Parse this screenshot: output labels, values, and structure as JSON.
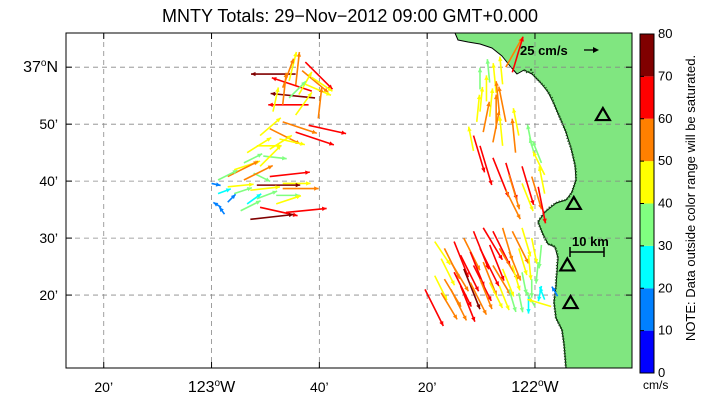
{
  "title": "MNTY Totals: 29−Nov−2012 09:00 GMT+0.000",
  "lat_ticks": [
    {
      "value": 37.0,
      "label": "37",
      "sup": "o",
      "suffix": "N"
    },
    {
      "value": 36.8333,
      "label": "50’"
    },
    {
      "value": 36.6667,
      "label": "40’"
    },
    {
      "value": 36.5,
      "label": "30’"
    },
    {
      "value": 36.3333,
      "label": "20’"
    }
  ],
  "lon_ticks": [
    {
      "value": -123.3333,
      "label": "20’"
    },
    {
      "value": -123.0,
      "label": "123",
      "sup": "o",
      "suffix": "W"
    },
    {
      "value": -122.6667,
      "label": "40’"
    },
    {
      "value": -122.3333,
      "label": "20’"
    },
    {
      "value": -122.0,
      "label": "122",
      "sup": "o",
      "suffix": "W"
    }
  ],
  "map_extent": {
    "lon_min": -123.45,
    "lon_max": -121.7,
    "lat_min": 36.12,
    "lat_max": 37.1
  },
  "grid": true,
  "colorbar": {
    "min": 0,
    "max": 80,
    "tick_labels": [
      "0",
      "10",
      "20",
      "30",
      "40",
      "50",
      "60",
      "70",
      "80"
    ],
    "colors": [
      "#0000ff",
      "#0080ff",
      "#00ffff",
      "#80ff80",
      "#ffff00",
      "#ff8000",
      "#ff0000",
      "#800000"
    ],
    "unit": "cm/s",
    "note": "NOTE: Data outside color range will be saturated."
  },
  "reference_vector": {
    "label": "25 cm/s",
    "speed": 25
  },
  "scale_bar": {
    "label": "10 km"
  },
  "land_color": "#80e680",
  "sites": [
    {
      "lon": -121.79,
      "lat": 36.86
    },
    {
      "lon": -121.88,
      "lat": 36.6
    },
    {
      "lon": -121.9,
      "lat": 36.42
    },
    {
      "lon": -121.89,
      "lat": 36.31
    }
  ],
  "vectors": [
    {
      "lon": -122.71,
      "lat": 37.015,
      "u": 0.5,
      "v": -0.5,
      "s": 62
    },
    {
      "lon": -122.72,
      "lat": 36.99,
      "u": 0.6,
      "v": -0.5,
      "s": 55
    },
    {
      "lon": -122.74,
      "lat": 36.98,
      "u": -1,
      "v": 0,
      "s": 72
    },
    {
      "lon": -122.69,
      "lat": 36.97,
      "u": 0.6,
      "v": -0.4,
      "s": 40
    },
    {
      "lon": -122.76,
      "lat": 36.96,
      "u": 0.2,
      "v": 0.8,
      "s": 48
    },
    {
      "lon": -122.71,
      "lat": 36.95,
      "u": 0.7,
      "v": -0.3,
      "s": 45
    },
    {
      "lon": -122.74,
      "lat": 36.945,
      "u": 0.1,
      "v": 0.9,
      "s": 55
    },
    {
      "lon": -122.78,
      "lat": 36.94,
      "u": 0.3,
      "v": 0.8,
      "s": 50
    },
    {
      "lon": -122.69,
      "lat": 36.93,
      "u": -0.9,
      "v": 0.3,
      "s": 68
    },
    {
      "lon": -122.73,
      "lat": 36.92,
      "u": 0.4,
      "v": 0.7,
      "s": 42
    },
    {
      "lon": -122.68,
      "lat": 36.91,
      "u": -1,
      "v": 0.1,
      "s": 72
    },
    {
      "lon": -122.76,
      "lat": 36.91,
      "u": 0.6,
      "v": 0.6,
      "s": 38
    },
    {
      "lon": -122.7,
      "lat": 36.89,
      "u": -1,
      "v": 0,
      "s": 65
    },
    {
      "lon": -122.78,
      "lat": 36.89,
      "u": 0.1,
      "v": 0.9,
      "s": 52
    },
    {
      "lon": -122.81,
      "lat": 36.87,
      "u": 0.2,
      "v": 0.9,
      "s": 40
    },
    {
      "lon": -122.74,
      "lat": 36.86,
      "u": 0.5,
      "v": 0.7,
      "s": 45
    },
    {
      "lon": -122.67,
      "lat": 36.85,
      "u": 0.1,
      "v": 0.9,
      "s": 50
    },
    {
      "lon": -122.78,
      "lat": 36.84,
      "u": 0.9,
      "v": -0.3,
      "s": 58
    },
    {
      "lon": -122.7,
      "lat": 36.83,
      "u": 0.9,
      "v": -0.2,
      "s": 62
    },
    {
      "lon": -122.82,
      "lat": 36.82,
      "u": 0.8,
      "v": -0.4,
      "s": 55
    },
    {
      "lon": -122.74,
      "lat": 36.81,
      "u": 0.9,
      "v": -0.3,
      "s": 65
    },
    {
      "lon": -122.85,
      "lat": 36.8,
      "u": 0.7,
      "v": 0.6,
      "s": 44
    },
    {
      "lon": -122.79,
      "lat": 36.79,
      "u": 0.9,
      "v": -0.2,
      "s": 42
    },
    {
      "lon": -122.86,
      "lat": 36.77,
      "u": 0.9,
      "v": 0,
      "s": 40
    },
    {
      "lon": -122.82,
      "lat": 36.76,
      "u": 0.8,
      "v": 0.5,
      "s": 42
    },
    {
      "lon": -122.89,
      "lat": 36.75,
      "u": 0.8,
      "v": 0.5,
      "s": 46
    },
    {
      "lon": -122.84,
      "lat": 36.74,
      "u": 0.9,
      "v": -0.1,
      "s": 38
    },
    {
      "lon": -122.9,
      "lat": 36.72,
      "u": 0.8,
      "v": 0.4,
      "s": 33
    },
    {
      "lon": -122.85,
      "lat": 36.71,
      "u": 0.6,
      "v": 0.6,
      "s": 48
    },
    {
      "lon": -122.93,
      "lat": 36.7,
      "u": 0.9,
      "v": 0.3,
      "s": 44
    },
    {
      "lon": -122.87,
      "lat": 36.69,
      "u": 0.8,
      "v": -0.4,
      "s": 30
    },
    {
      "lon": -122.95,
      "lat": 36.68,
      "u": 0.8,
      "v": 0.4,
      "s": 55
    },
    {
      "lon": -122.82,
      "lat": 36.68,
      "u": 0.9,
      "v": 0.1,
      "s": 65
    },
    {
      "lon": -122.9,
      "lat": 36.67,
      "u": 0.8,
      "v": 0.4,
      "s": 52
    },
    {
      "lon": -122.98,
      "lat": 36.67,
      "u": 0.8,
      "v": 0.4,
      "s": 35
    },
    {
      "lon": -122.78,
      "lat": 36.66,
      "u": 0.9,
      "v": 0,
      "s": 45
    },
    {
      "lon": -122.86,
      "lat": 36.655,
      "u": 0.9,
      "v": 0,
      "s": 70
    },
    {
      "lon": -122.95,
      "lat": 36.65,
      "u": 1,
      "v": 0.1,
      "s": 42
    },
    {
      "lon": -123.0,
      "lat": 36.66,
      "u": 0.9,
      "v": -0.2,
      "s": 15
    },
    {
      "lon": -122.78,
      "lat": 36.645,
      "u": 1,
      "v": 0,
      "s": 58
    },
    {
      "lon": -122.88,
      "lat": 36.64,
      "u": 0.9,
      "v": 0.1,
      "s": 48
    },
    {
      "lon": -122.93,
      "lat": 36.63,
      "u": 0.9,
      "v": 0.3,
      "s": 30
    },
    {
      "lon": -122.98,
      "lat": 36.63,
      "u": 0.8,
      "v": 0.3,
      "s": 22
    },
    {
      "lon": -122.8,
      "lat": 36.625,
      "u": 0.9,
      "v": 0,
      "s": 38
    },
    {
      "lon": -122.86,
      "lat": 36.615,
      "u": 0.8,
      "v": 0.3,
      "s": 35
    },
    {
      "lon": -122.95,
      "lat": 36.605,
      "u": 0.6,
      "v": 0.6,
      "s": 18
    },
    {
      "lon": -122.89,
      "lat": 36.6,
      "u": 0.7,
      "v": 0.5,
      "s": 28
    },
    {
      "lon": -122.8,
      "lat": 36.6,
      "u": 0.9,
      "v": 0.3,
      "s": 42
    },
    {
      "lon": -122.85,
      "lat": 36.59,
      "u": 0.9,
      "v": -0.2,
      "s": 62
    },
    {
      "lon": -122.91,
      "lat": 36.58,
      "u": 0.8,
      "v": 0.4,
      "s": 36
    },
    {
      "lon": -122.77,
      "lat": 36.575,
      "u": 1,
      "v": 0.1,
      "s": 66
    },
    {
      "lon": -122.88,
      "lat": 36.555,
      "u": 0.9,
      "v": 0.1,
      "s": 70
    },
    {
      "lon": -122.97,
      "lat": 36.59,
      "u": -0.8,
      "v": 0.5,
      "s": 15
    },
    {
      "lon": -122.96,
      "lat": 36.57,
      "u": -0.5,
      "v": 0.7,
      "s": 14
    },
    {
      "lon": -122.09,
      "lat": 37.0,
      "u": 0.5,
      "v": 0.9,
      "s": 55
    },
    {
      "lon": -122.07,
      "lat": 36.985,
      "u": 0.3,
      "v": 1,
      "s": 60
    },
    {
      "lon": -122.14,
      "lat": 36.955,
      "u": -0.1,
      "v": 1,
      "s": 38
    },
    {
      "lon": -122.1,
      "lat": 36.95,
      "u": -0.1,
      "v": 1,
      "s": 45
    },
    {
      "lon": -122.17,
      "lat": 36.935,
      "u": 0,
      "v": 1,
      "s": 35
    },
    {
      "lon": -122.12,
      "lat": 36.925,
      "u": -0.1,
      "v": 1,
      "s": 48
    },
    {
      "lon": -122.15,
      "lat": 36.9,
      "u": 0,
      "v": 1,
      "s": 42
    },
    {
      "lon": -122.17,
      "lat": 36.87,
      "u": 0.1,
      "v": 1,
      "s": 40
    },
    {
      "lon": -122.11,
      "lat": 36.865,
      "u": -0.1,
      "v": 1,
      "s": 52
    },
    {
      "lon": -122.14,
      "lat": 36.855,
      "u": 0.1,
      "v": 1,
      "s": 46
    },
    {
      "lon": -122.18,
      "lat": 36.84,
      "u": 0.1,
      "v": 1,
      "s": 44
    },
    {
      "lon": -122.09,
      "lat": 36.84,
      "u": -0.2,
      "v": 1,
      "s": 58
    },
    {
      "lon": -122.12,
      "lat": 36.82,
      "u": 0,
      "v": 1,
      "s": 55
    },
    {
      "lon": -122.16,
      "lat": 36.81,
      "u": 0.2,
      "v": 1,
      "s": 50
    },
    {
      "lon": -122.19,
      "lat": 36.8,
      "u": 0.3,
      "v": -1,
      "s": 62
    },
    {
      "lon": -122.05,
      "lat": 36.8,
      "u": -0.2,
      "v": 1,
      "s": 45
    },
    {
      "lon": -122.13,
      "lat": 36.78,
      "u": 0.2,
      "v": 1,
      "s": 52
    },
    {
      "lon": -122.17,
      "lat": 36.77,
      "u": 0.3,
      "v": -1,
      "s": 66
    },
    {
      "lon": -122.1,
      "lat": 36.77,
      "u": -0.1,
      "v": 1,
      "s": 48
    },
    {
      "lon": -122.01,
      "lat": 36.77,
      "u": -0.2,
      "v": 1,
      "s": 35
    },
    {
      "lon": -122.19,
      "lat": 36.755,
      "u": -0.2,
      "v": 1,
      "s": 40
    },
    {
      "lon": -122.06,
      "lat": 36.75,
      "u": -0.1,
      "v": 1,
      "s": 55
    },
    {
      "lon": -122.13,
      "lat": 36.735,
      "u": 0.4,
      "v": -1,
      "s": 68
    },
    {
      "lon": -122.0,
      "lat": 36.74,
      "u": -0.3,
      "v": 1,
      "s": 30
    },
    {
      "lon": -122.09,
      "lat": 36.72,
      "u": 0.3,
      "v": -1,
      "s": 62
    },
    {
      "lon": -122.04,
      "lat": 36.71,
      "u": 0.3,
      "v": -1,
      "s": 65
    },
    {
      "lon": -121.98,
      "lat": 36.72,
      "u": -0.4,
      "v": 1,
      "s": 38
    },
    {
      "lon": -122.08,
      "lat": 36.685,
      "u": 0.3,
      "v": -1,
      "s": 58
    },
    {
      "lon": -122.01,
      "lat": 36.68,
      "u": 0.3,
      "v": -1,
      "s": 55
    },
    {
      "lon": -121.97,
      "lat": 36.685,
      "u": -0.5,
      "v": 1,
      "s": 42
    },
    {
      "lon": -122.04,
      "lat": 36.66,
      "u": 0.4,
      "v": -1,
      "s": 48
    },
    {
      "lon": -121.99,
      "lat": 36.65,
      "u": 0.2,
      "v": -1,
      "s": 60
    },
    {
      "lon": -122.09,
      "lat": 36.64,
      "u": 0.5,
      "v": -1,
      "s": 52
    },
    {
      "lon": -121.97,
      "lat": 36.63,
      "u": -0.2,
      "v": 1,
      "s": 45
    },
    {
      "lon": -122.31,
      "lat": 36.49,
      "u": 0.6,
      "v": -0.9,
      "s": 45
    },
    {
      "lon": -122.28,
      "lat": 36.47,
      "u": 0.5,
      "v": -1,
      "s": 55
    },
    {
      "lon": -122.25,
      "lat": 36.49,
      "u": 0.4,
      "v": -1,
      "s": 62
    },
    {
      "lon": -122.22,
      "lat": 36.5,
      "u": 0.5,
      "v": -1,
      "s": 58
    },
    {
      "lon": -122.19,
      "lat": 36.52,
      "u": 0.4,
      "v": -1,
      "s": 66
    },
    {
      "lon": -122.16,
      "lat": 36.53,
      "u": 0.6,
      "v": -1,
      "s": 60
    },
    {
      "lon": -122.13,
      "lat": 36.52,
      "u": 0.5,
      "v": -1,
      "s": 62
    },
    {
      "lon": -122.1,
      "lat": 36.53,
      "u": 0.3,
      "v": -1,
      "s": 55
    },
    {
      "lon": -122.07,
      "lat": 36.52,
      "u": 0.5,
      "v": -1,
      "s": 58
    },
    {
      "lon": -122.04,
      "lat": 36.53,
      "u": 0.3,
      "v": -1,
      "s": 48
    },
    {
      "lon": -122.01,
      "lat": 36.5,
      "u": 0.2,
      "v": -1,
      "s": 42
    },
    {
      "lon": -121.98,
      "lat": 36.48,
      "u": -0.1,
      "v": -1,
      "s": 38
    },
    {
      "lon": -122.29,
      "lat": 36.44,
      "u": 0.5,
      "v": -1,
      "s": 48
    },
    {
      "lon": -122.26,
      "lat": 36.43,
      "u": 0.6,
      "v": -1,
      "s": 55
    },
    {
      "lon": -122.23,
      "lat": 36.45,
      "u": 0.5,
      "v": -1,
      "s": 65
    },
    {
      "lon": -122.2,
      "lat": 36.46,
      "u": 0.4,
      "v": -1,
      "s": 60
    },
    {
      "lon": -122.17,
      "lat": 36.47,
      "u": 0.5,
      "v": -1,
      "s": 68
    },
    {
      "lon": -122.14,
      "lat": 36.48,
      "u": 0.4,
      "v": -1,
      "s": 62
    },
    {
      "lon": -122.11,
      "lat": 36.47,
      "u": 0.6,
      "v": -1,
      "s": 58
    },
    {
      "lon": -122.08,
      "lat": 36.46,
      "u": 0.4,
      "v": -1,
      "s": 50
    },
    {
      "lon": -122.05,
      "lat": 36.47,
      "u": 0.3,
      "v": -1,
      "s": 45
    },
    {
      "lon": -122.02,
      "lat": 36.45,
      "u": 0.1,
      "v": -1,
      "s": 40
    },
    {
      "lon": -121.99,
      "lat": 36.43,
      "u": -0.1,
      "v": -1,
      "s": 35
    },
    {
      "lon": -122.31,
      "lat": 36.39,
      "u": 0.5,
      "v": -1,
      "s": 44
    },
    {
      "lon": -122.28,
      "lat": 36.38,
      "u": 0.6,
      "v": -1,
      "s": 52
    },
    {
      "lon": -122.25,
      "lat": 36.4,
      "u": 0.5,
      "v": -1,
      "s": 62
    },
    {
      "lon": -122.22,
      "lat": 36.41,
      "u": 0.4,
      "v": -1,
      "s": 70
    },
    {
      "lon": -122.19,
      "lat": 36.42,
      "u": 0.5,
      "v": -1,
      "s": 64
    },
    {
      "lon": -122.16,
      "lat": 36.43,
      "u": 0.4,
      "v": -1,
      "s": 58
    },
    {
      "lon": -122.13,
      "lat": 36.42,
      "u": 0.6,
      "v": -1,
      "s": 55
    },
    {
      "lon": -122.1,
      "lat": 36.41,
      "u": 0.4,
      "v": -1,
      "s": 48
    },
    {
      "lon": -122.07,
      "lat": 36.42,
      "u": 0.3,
      "v": -1,
      "s": 42
    },
    {
      "lon": -122.04,
      "lat": 36.4,
      "u": 0.2,
      "v": -1,
      "s": 36
    },
    {
      "lon": -122.01,
      "lat": 36.38,
      "u": 0,
      "v": -1,
      "s": 30
    },
    {
      "lon": -121.98,
      "lat": 36.36,
      "u": -0.2,
      "v": -1,
      "s": 25
    },
    {
      "lon": -122.34,
      "lat": 36.35,
      "u": 0.5,
      "v": -1,
      "s": 66
    },
    {
      "lon": -122.29,
      "lat": 36.34,
      "u": 0.6,
      "v": -1,
      "s": 50
    },
    {
      "lon": -122.26,
      "lat": 36.35,
      "u": 0.5,
      "v": -1,
      "s": 56
    },
    {
      "lon": -122.23,
      "lat": 36.36,
      "u": 0.4,
      "v": -1,
      "s": 62
    },
    {
      "lon": -122.2,
      "lat": 36.37,
      "u": 0.5,
      "v": -1,
      "s": 58
    },
    {
      "lon": -122.17,
      "lat": 36.38,
      "u": 0.4,
      "v": -1,
      "s": 52
    },
    {
      "lon": -122.14,
      "lat": 36.37,
      "u": 0.5,
      "v": -1,
      "s": 46
    },
    {
      "lon": -122.11,
      "lat": 36.36,
      "u": 0.4,
      "v": -1,
      "s": 42
    },
    {
      "lon": -122.08,
      "lat": 36.35,
      "u": 0.3,
      "v": -1,
      "s": 38
    },
    {
      "lon": -122.05,
      "lat": 36.34,
      "u": 0.2,
      "v": -1,
      "s": 32
    },
    {
      "lon": -122.02,
      "lat": 36.33,
      "u": 0,
      "v": -1,
      "s": 28
    },
    {
      "lon": -121.97,
      "lat": 36.32,
      "u": -0.4,
      "v": 1,
      "s": 22
    },
    {
      "lon": -121.93,
      "lat": 36.33,
      "u": -0.6,
      "v": 1,
      "s": 18
    },
    {
      "lon": -122.0,
      "lat": 36.3,
      "u": -0.6,
      "v": 1,
      "s": 30
    },
    {
      "lon": -121.95,
      "lat": 36.3,
      "u": -1,
      "v": 0.3,
      "s": 40
    }
  ]
}
